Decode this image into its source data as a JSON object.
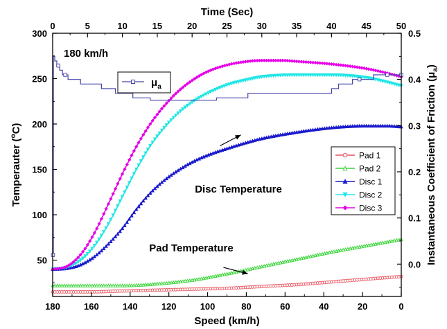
{
  "chart_data": {
    "type": "line",
    "top_axis": {
      "title": "Time (Sec)",
      "range": [
        0,
        50
      ],
      "ticks": [
        0,
        5,
        10,
        15,
        20,
        25,
        30,
        35,
        40,
        45,
        50
      ],
      "tick_labels": [
        "0",
        "5",
        "10",
        "15",
        "20",
        "25",
        "30",
        "35",
        "40",
        "45",
        "50"
      ]
    },
    "bottom_axis": {
      "title": "Speed (km/h)",
      "range": [
        180,
        0
      ],
      "ticks": [
        180,
        160,
        140,
        120,
        100,
        80,
        60,
        40,
        20,
        0
      ],
      "tick_labels": [
        "180",
        "160",
        "140",
        "120",
        "100",
        "80",
        "60",
        "40",
        "20",
        "0"
      ]
    },
    "left_axis": {
      "title": "Temperauter (°C)",
      "title_prefix": "Temperauter (",
      "title_sup": "o",
      "title_suffix": "C)",
      "range": [
        10,
        300
      ],
      "ticks": [
        50,
        100,
        150,
        200,
        250,
        300
      ],
      "tick_labels": [
        "50",
        "100",
        "150",
        "200",
        "250",
        "300"
      ]
    },
    "right_axis": {
      "title": "Instantaneous Coefficient of Friction (μa)",
      "title_prefix": "Instantaneous Coefficient of Friction (μ",
      "title_sub": "a",
      "title_suffix": ")",
      "range": [
        -0.07,
        0.5
      ],
      "ticks": [
        0.0,
        0.1,
        0.2,
        0.3,
        0.4,
        0.5
      ],
      "tick_labels": [
        "0.0",
        "0.1",
        "0.2",
        "0.3",
        "0.4",
        "0.5"
      ]
    },
    "speed_label": "180 km/h",
    "annotations": [
      {
        "text": "Disc Temperature",
        "arrow_from": [
          24,
          176
        ],
        "arrow_to": [
          27,
          188
        ]
      },
      {
        "text": "Pad Temperature",
        "arrow_from": [
          24.5,
          42
        ],
        "arrow_to": [
          28,
          35
        ]
      }
    ],
    "series": [
      {
        "name": "Pad 1",
        "axis": "left",
        "color": "#e8505b",
        "marker": "circle-open",
        "x": [
          0,
          5,
          10,
          15,
          20,
          25,
          30,
          35,
          40,
          45,
          50
        ],
        "y": [
          15,
          15,
          16,
          17,
          18,
          19,
          21,
          23,
          26,
          29,
          32
        ]
      },
      {
        "name": "Pad 2",
        "axis": "left",
        "color": "#3cd63c",
        "marker": "triangle-open",
        "x": [
          0,
          5,
          10,
          15,
          20,
          25,
          30,
          35,
          40,
          45,
          50
        ],
        "y": [
          22,
          22,
          22,
          24,
          28,
          35,
          43,
          51,
          59,
          66,
          73
        ]
      },
      {
        "name": "Disc 1",
        "axis": "left",
        "color": "#1a1acc",
        "marker": "triangle",
        "x": [
          0,
          2,
          4,
          6,
          8,
          10,
          12,
          14,
          16,
          18,
          20,
          22,
          25,
          28,
          30,
          35,
          40,
          45,
          48,
          50
        ],
        "y": [
          40,
          41,
          45,
          54,
          68,
          85,
          106,
          124,
          138,
          149,
          158,
          165,
          173,
          180,
          184,
          191,
          196,
          198,
          198,
          197
        ]
      },
      {
        "name": "Disc 2",
        "axis": "left",
        "color": "#22e6e6",
        "marker": "triangle-down",
        "x": [
          0,
          2,
          4,
          6,
          8,
          10,
          12,
          14,
          16,
          18,
          20,
          22,
          25,
          28,
          30,
          35,
          40,
          45,
          48,
          50
        ],
        "y": [
          40,
          42,
          50,
          66,
          90,
          120,
          150,
          176,
          196,
          212,
          224,
          233,
          243,
          249,
          252,
          254,
          254,
          251,
          246,
          242
        ]
      },
      {
        "name": "Disc 3",
        "axis": "left",
        "color": "#e600e6",
        "marker": "diamond",
        "x": [
          0,
          2,
          4,
          6,
          8,
          10,
          12,
          14,
          16,
          18,
          20,
          22,
          25,
          28,
          30,
          33,
          35,
          40,
          45,
          48,
          50
        ],
        "y": [
          40,
          43,
          56,
          80,
          112,
          145,
          175,
          200,
          220,
          236,
          248,
          257,
          265,
          269,
          270,
          270,
          269,
          266,
          261,
          256,
          252
        ]
      },
      {
        "name": "μa",
        "legend_base": "μ",
        "legend_sub": "a",
        "axis": "right",
        "color": "#4444aa",
        "marker": "square-open",
        "step": true,
        "x": [
          0,
          0.1,
          0.3,
          0.6,
          1.0,
          1.4,
          2.2,
          3.0,
          4.0,
          5.5,
          7.0,
          9.0,
          10.0,
          11.5,
          14.0,
          17.0,
          20.0,
          22.5,
          23.5,
          26.0,
          28.0,
          31.0,
          34.0,
          37.0,
          40.0,
          41.0,
          43.0,
          46.0,
          50.0
        ],
        "y": [
          0.02,
          0.45,
          0.44,
          0.43,
          0.42,
          0.41,
          0.4,
          0.4,
          0.39,
          0.39,
          0.38,
          0.37,
          0.37,
          0.36,
          0.355,
          0.355,
          0.355,
          0.355,
          0.36,
          0.36,
          0.37,
          0.37,
          0.37,
          0.37,
          0.38,
          0.39,
          0.4,
          0.41,
          0.41
        ]
      }
    ]
  }
}
